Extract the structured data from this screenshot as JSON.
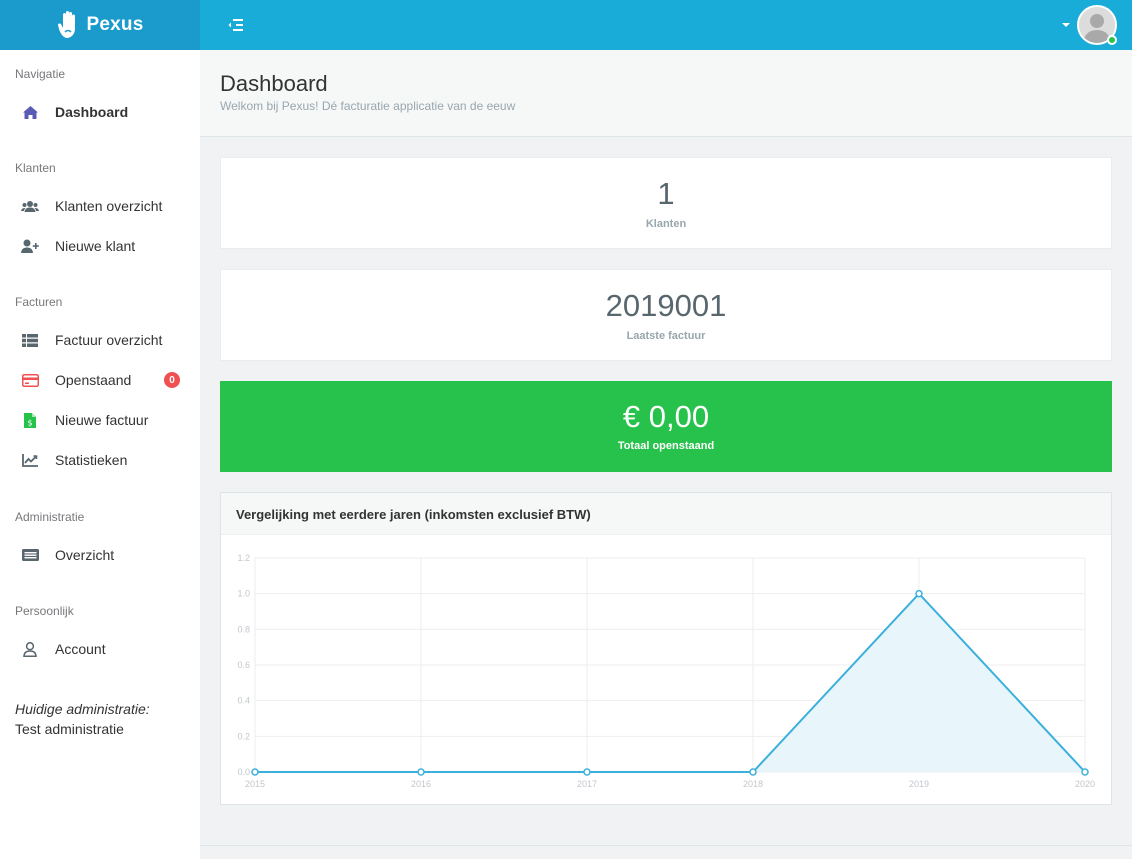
{
  "brand": {
    "name": "Pexus"
  },
  "sidebar": {
    "sections": [
      {
        "heading": "Navigatie",
        "items": [
          {
            "label": "Dashboard",
            "icon": "home-icon",
            "active": true
          }
        ]
      },
      {
        "heading": "Klanten",
        "items": [
          {
            "label": "Klanten overzicht",
            "icon": "users-icon"
          },
          {
            "label": "Nieuwe klant",
            "icon": "user-plus-icon"
          }
        ]
      },
      {
        "heading": "Facturen",
        "items": [
          {
            "label": "Factuur overzicht",
            "icon": "list-icon"
          },
          {
            "label": "Openstaand",
            "icon": "credit-card-icon",
            "badge": "0"
          },
          {
            "label": "Nieuwe factuur",
            "icon": "invoice-icon"
          },
          {
            "label": "Statistieken",
            "icon": "chart-icon"
          }
        ]
      },
      {
        "heading": "Administratie",
        "items": [
          {
            "label": "Overzicht",
            "icon": "id-card-icon"
          }
        ]
      },
      {
        "heading": "Persoonlijk",
        "items": [
          {
            "label": "Account",
            "icon": "user-icon"
          }
        ]
      }
    ],
    "current_admin_label": "Huidige administratie:",
    "current_admin_value": "Test administratie"
  },
  "header": {
    "title": "Dashboard",
    "subtitle": "Welkom bij Pexus! Dé facturatie applicatie van de eeuw"
  },
  "stats": {
    "customers": {
      "value": "1",
      "label": "Klanten"
    },
    "last_invoice": {
      "value": "2019001",
      "label": "Laatste factuur"
    },
    "outstanding": {
      "value": "€ 0,00",
      "label": "Totaal openstaand"
    }
  },
  "colors": {
    "brand": "#1a9bcb",
    "topbar": "#1aacd9",
    "success": "#27c24c",
    "danger": "#f05050",
    "chart_line": "#3cb0dc",
    "chart_fill": "#e8f5fb"
  },
  "chart_panel": {
    "title": "Vergelijking met eerdere jaren (inkomsten exclusief BTW)"
  },
  "chart_data": {
    "type": "area",
    "title": "",
    "xlabel": "",
    "ylabel": "",
    "categories": [
      "2015",
      "2016",
      "2017",
      "2018",
      "2019",
      "2020"
    ],
    "values": [
      0,
      0,
      0,
      0,
      1,
      0
    ],
    "ylim": [
      0,
      1.2
    ],
    "yticks": [
      "0.0",
      "0.2",
      "0.4",
      "0.6",
      "0.8",
      "1.0",
      "1.2"
    ],
    "grid": true
  }
}
